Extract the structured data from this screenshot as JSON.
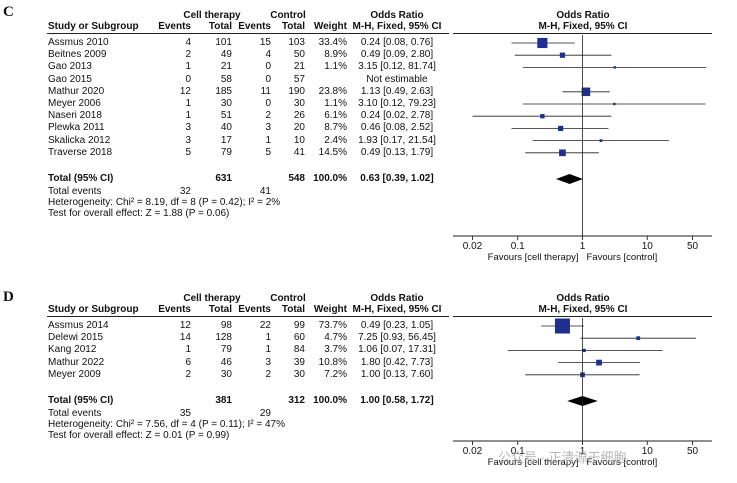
{
  "chart_data": [
    {
      "type": "forest",
      "panel_label": "C",
      "group1_label": "Cell therapy",
      "group2_label": "Control",
      "columns": {
        "study": "Study or Subgroup",
        "events1": "Events",
        "total1": "Total",
        "events2": "Events",
        "total2": "Total",
        "weight": "Weight",
        "or_text": "Odds Ratio",
        "or_text_sub": "M-H, Fixed, 95% CI",
        "plot_title": "Odds Ratio",
        "plot_sub": "M-H, Fixed, 95% CI"
      },
      "studies": [
        {
          "name": "Assmus 2010",
          "e1": "4",
          "n1": "101",
          "e2": "15",
          "n2": "103",
          "weight": "33.4%",
          "ci_text": "0.24 [0.08, 0.76]",
          "or": 0.24,
          "lo": 0.08,
          "hi": 0.76,
          "w": 33.4
        },
        {
          "name": "Beitnes 2009",
          "e1": "2",
          "n1": "49",
          "e2": "4",
          "n2": "50",
          "weight": "8.9%",
          "ci_text": "0.49 [0.09, 2.80]",
          "or": 0.49,
          "lo": 0.09,
          "hi": 2.8,
          "w": 8.9
        },
        {
          "name": "Gao 2013",
          "e1": "1",
          "n1": "21",
          "e2": "0",
          "n2": "21",
          "weight": "1.1%",
          "ci_text": "3.15 [0.12, 81.74]",
          "or": 3.15,
          "lo": 0.12,
          "hi": 81.74,
          "w": 1.1
        },
        {
          "name": "Gao 2015",
          "e1": "0",
          "n1": "58",
          "e2": "0",
          "n2": "57",
          "weight": "",
          "ci_text": "Not estimable",
          "or": null,
          "lo": null,
          "hi": null,
          "w": 0
        },
        {
          "name": "Mathur 2020",
          "e1": "12",
          "n1": "185",
          "e2": "11",
          "n2": "190",
          "weight": "23.8%",
          "ci_text": "1.13 [0.49, 2.63]",
          "or": 1.13,
          "lo": 0.49,
          "hi": 2.63,
          "w": 23.8
        },
        {
          "name": "Meyer 2006",
          "e1": "1",
          "n1": "30",
          "e2": "0",
          "n2": "30",
          "weight": "1.1%",
          "ci_text": "3.10 [0.12, 79.23]",
          "or": 3.1,
          "lo": 0.12,
          "hi": 79.23,
          "w": 1.1
        },
        {
          "name": "Naseri 2018",
          "e1": "1",
          "n1": "51",
          "e2": "2",
          "n2": "26",
          "weight": "6.1%",
          "ci_text": "0.24 [0.02, 2.78]",
          "or": 0.24,
          "lo": 0.02,
          "hi": 2.78,
          "w": 6.1
        },
        {
          "name": "Plewka 2011",
          "e1": "3",
          "n1": "40",
          "e2": "3",
          "n2": "20",
          "weight": "8.7%",
          "ci_text": "0.46 [0.08, 2.52]",
          "or": 0.46,
          "lo": 0.08,
          "hi": 2.52,
          "w": 8.7
        },
        {
          "name": "Skalicka 2012",
          "e1": "3",
          "n1": "17",
          "e2": "1",
          "n2": "10",
          "weight": "2.4%",
          "ci_text": "1.93 [0.17, 21.54]",
          "or": 1.93,
          "lo": 0.17,
          "hi": 21.54,
          "w": 2.4
        },
        {
          "name": "Traverse 2018",
          "e1": "5",
          "n1": "79",
          "e2": "5",
          "n2": "41",
          "weight": "14.5%",
          "ci_text": "0.49 [0.13, 1.79]",
          "or": 0.49,
          "lo": 0.13,
          "hi": 1.79,
          "w": 14.5
        }
      ],
      "total": {
        "name": "Total (95% CI)",
        "n1": "631",
        "n2": "548",
        "weight": "100.0%",
        "ci_text": "0.63 [0.39, 1.02]",
        "or": 0.63,
        "lo": 0.39,
        "hi": 1.02
      },
      "total_events": {
        "label": "Total events",
        "e1": "32",
        "e2": "41"
      },
      "heterogeneity": "Heterogeneity: Chi² = 8.19, df = 8 (P = 0.42); I² = 2%",
      "overall_effect": "Test for overall effect: Z = 1.88 (P = 0.06)",
      "axis": {
        "scale": "log",
        "min": 0.01,
        "max": 100,
        "ticks": [
          0.02,
          0.1,
          1,
          10,
          50
        ],
        "tick_labels": [
          "0.02",
          "0.1",
          "1",
          "10",
          "50"
        ]
      },
      "favours_left": "Favours [cell therapy]",
      "favours_right": "Favours [control]"
    },
    {
      "type": "forest",
      "panel_label": "D",
      "group1_label": "Cell therapy",
      "group2_label": "Control",
      "columns": {
        "study": "Study or Subgroup",
        "events1": "Events",
        "total1": "Total",
        "events2": "Events",
        "total2": "Total",
        "weight": "Weight",
        "or_text": "Odds Ratio",
        "or_text_sub": "M-H, Fixed, 95% CI",
        "plot_title": "Odds Ratio",
        "plot_sub": "M-H, Fixed, 95% CI"
      },
      "studies": [
        {
          "name": "Assmus 2014",
          "e1": "12",
          "n1": "98",
          "e2": "22",
          "n2": "99",
          "weight": "73.7%",
          "ci_text": "0.49 [0.23, 1.05]",
          "or": 0.49,
          "lo": 0.23,
          "hi": 1.05,
          "w": 73.7
        },
        {
          "name": "Delewi 2015",
          "e1": "14",
          "n1": "128",
          "e2": "1",
          "n2": "60",
          "weight": "4.7%",
          "ci_text": "7.25 [0.93, 56.45]",
          "or": 7.25,
          "lo": 0.93,
          "hi": 56.45,
          "w": 4.7
        },
        {
          "name": "Kang 2012",
          "e1": "1",
          "n1": "79",
          "e2": "1",
          "n2": "84",
          "weight": "3.7%",
          "ci_text": "1.06 [0.07, 17.31]",
          "or": 1.06,
          "lo": 0.07,
          "hi": 17.31,
          "w": 3.7
        },
        {
          "name": "Mathur 2022",
          "e1": "6",
          "n1": "46",
          "e2": "3",
          "n2": "39",
          "weight": "10.8%",
          "ci_text": "1.80 [0.42, 7.73]",
          "or": 1.8,
          "lo": 0.42,
          "hi": 7.73,
          "w": 10.8
        },
        {
          "name": "Meyer 2009",
          "e1": "2",
          "n1": "30",
          "e2": "2",
          "n2": "30",
          "weight": "7.2%",
          "ci_text": "1.00 [0.13, 7.60]",
          "or": 1.0,
          "lo": 0.13,
          "hi": 7.6,
          "w": 7.2
        }
      ],
      "total": {
        "name": "Total (95% CI)",
        "n1": "381",
        "n2": "312",
        "weight": "100.0%",
        "ci_text": "1.00 [0.58, 1.72]",
        "or": 1.0,
        "lo": 0.58,
        "hi": 1.72
      },
      "total_events": {
        "label": "Total events",
        "e1": "35",
        "e2": "29"
      },
      "heterogeneity": "Heterogeneity: Chi² = 7.56, df = 4 (P = 0.11); I² = 47%",
      "overall_effect": "Test for overall effect: Z = 0.01 (P = 0.99)",
      "axis": {
        "scale": "log",
        "min": 0.01,
        "max": 100,
        "ticks": [
          0.02,
          0.1,
          1,
          10,
          50
        ],
        "tick_labels": [
          "0.02",
          "0.1",
          "1",
          "10",
          "50"
        ]
      },
      "favours_left": "Favours [cell therapy]",
      "favours_right": "Favours [control]"
    }
  ],
  "watermark": "公众号 · 正清源干细胞",
  "colors": {
    "study_marker": "#1f2f8f",
    "line": "#222222",
    "diamond": "#000000"
  }
}
